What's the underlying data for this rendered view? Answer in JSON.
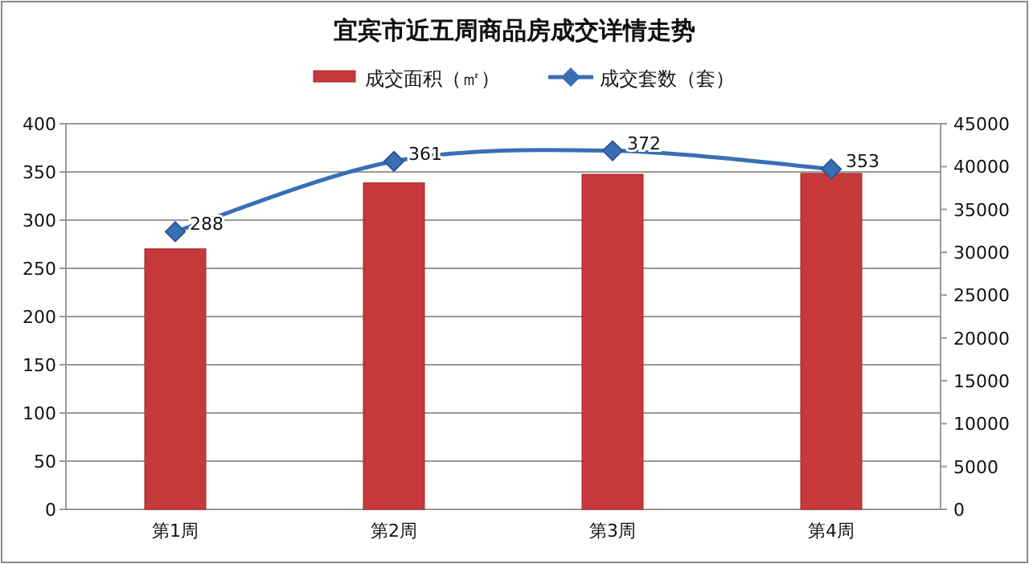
{
  "chart_data": {
    "type": "bar",
    "title": "宜宾市近五周商品房成交详情走势",
    "categories": [
      "第1周",
      "第2周",
      "第3周",
      "第4周"
    ],
    "series": [
      {
        "name": "成交面积（㎡）",
        "axis": "y2",
        "color": "#c8393b",
        "values": [
          30400,
          38100,
          39100,
          39200
        ]
      },
      {
        "name": "成交套数（套）",
        "type": "line",
        "color": "#3a6fb5",
        "values": [
          288,
          361,
          372,
          353
        ],
        "value_labels": [
          "288",
          "361",
          "372",
          "353"
        ]
      }
    ],
    "ylim": [
      0,
      400
    ],
    "yticks": [
      0,
      50,
      100,
      150,
      200,
      250,
      300,
      350,
      400
    ],
    "y2lim": [
      0,
      45000
    ],
    "y2ticks": [
      0,
      5000,
      10000,
      15000,
      20000,
      25000,
      30000,
      35000,
      40000,
      45000
    ],
    "grid": "y",
    "legend": "top",
    "marker": "diamond"
  }
}
